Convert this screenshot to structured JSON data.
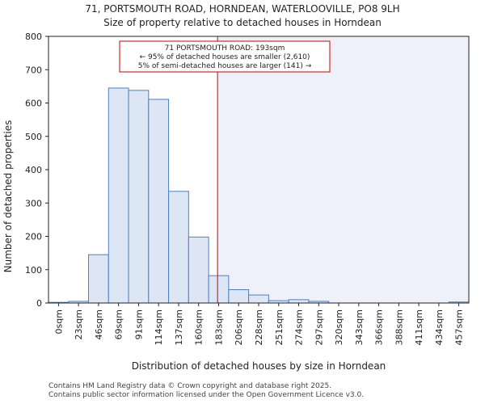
{
  "chart_data": {
    "type": "bar",
    "title": "71, PORTSMOUTH ROAD, HORNDEAN, WATERLOOVILLE, PO8 9LH",
    "subtitle": "Size of property relative to detached houses in Horndean",
    "xlabel": "Distribution of detached houses by size in Horndean",
    "ylabel": "Number of detached properties",
    "ylim": [
      0,
      800
    ],
    "yticks": [
      0,
      100,
      200,
      300,
      400,
      500,
      600,
      700,
      800
    ],
    "categories": [
      "0sqm",
      "23sqm",
      "46sqm",
      "69sqm",
      "91sqm",
      "114sqm",
      "137sqm",
      "160sqm",
      "183sqm",
      "206sqm",
      "228sqm",
      "251sqm",
      "274sqm",
      "297sqm",
      "320sqm",
      "343sqm",
      "366sqm",
      "388sqm",
      "411sqm",
      "434sqm",
      "457sqm"
    ],
    "values": [
      2,
      5,
      145,
      645,
      638,
      611,
      335,
      198,
      82,
      40,
      24,
      7,
      10,
      5,
      0,
      0,
      0,
      0,
      0,
      0,
      3
    ],
    "marker": {
      "value_sqm": 193,
      "line_color": "#cc0000",
      "label_line1": "71 PORTSMOUTH ROAD: 193sqm",
      "label_line2": "← 95% of detached houses are smaller (2,610)",
      "label_line3": "5% of semi-detached houses are larger (141) →"
    },
    "bar_fill": "#dce6f5",
    "bar_stroke": "#4d7fc4",
    "shade_fill": "#eef1fa"
  },
  "footer": {
    "line1": "Contains HM Land Registry data © Crown copyright and database right 2025.",
    "line2": "Contains public sector information licensed under the Open Government Licence v3.0."
  }
}
